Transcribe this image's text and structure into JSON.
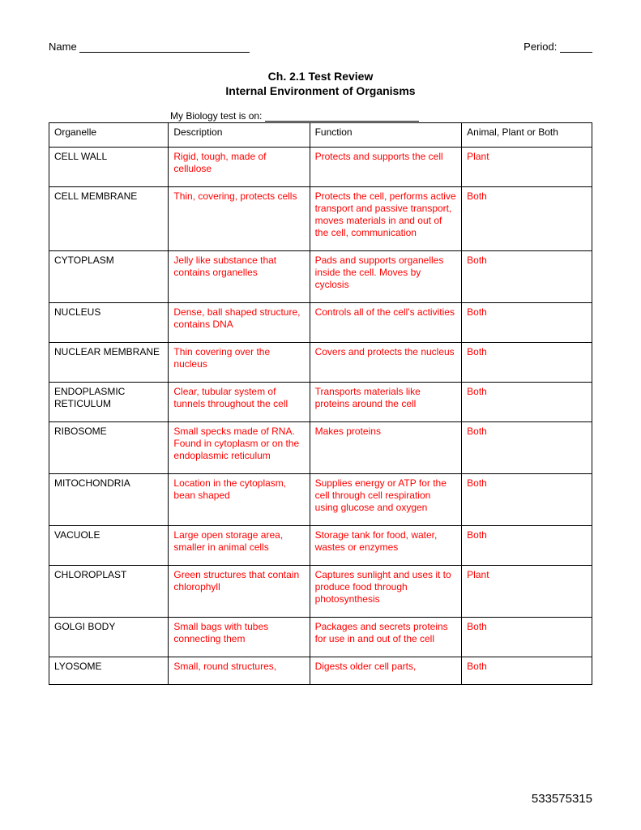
{
  "header": {
    "name_label": "Name",
    "period_label": "Period:"
  },
  "title": {
    "line1": "Ch. 2.1 Test Review",
    "line2": "Internal Environment of Organisms"
  },
  "test_date_label": "My Biology test is on:",
  "table": {
    "headers": {
      "organelle": "Organelle",
      "description": "Description",
      "function": "Function",
      "type": "Animal, Plant or Both"
    },
    "rows": [
      {
        "organelle": "CELL WALL",
        "description": "Rigid, tough, made of cellulose",
        "function": "Protects and supports the cell",
        "type": "Plant"
      },
      {
        "organelle": "CELL MEMBRANE",
        "description": "Thin, covering, protects cells",
        "function": "Protects the cell, performs active transport and passive transport, moves materials in and out of the cell, communication",
        "type": "Both"
      },
      {
        "organelle": "CYTOPLASM",
        "description": "Jelly like substance that contains organelles",
        "function": "Pads and supports organelles inside the cell. Moves by cyclosis",
        "type": "Both"
      },
      {
        "organelle": "NUCLEUS",
        "description": "Dense, ball shaped structure, contains DNA",
        "function": "Controls all of the cell's activities",
        "type": "Both"
      },
      {
        "organelle": "NUCLEAR MEMBRANE",
        "description": "Thin covering over the nucleus",
        "function": "Covers and protects the nucleus",
        "type": "Both"
      },
      {
        "organelle": "ENDOPLASMIC RETICULUM",
        "description": "Clear, tubular system of tunnels throughout the cell",
        "function": "Transports materials like proteins around the cell",
        "type": "Both"
      },
      {
        "organelle": "RIBOSOME",
        "description": "Small specks made of RNA. Found in cytoplasm or on the endoplasmic reticulum",
        "function": "Makes proteins",
        "type": "Both"
      },
      {
        "organelle": "MITOCHONDRIA",
        "description": "Location in the cytoplasm, bean shaped",
        "function": "Supplies energy or ATP for the cell through cell respiration using glucose and oxygen",
        "type": "Both"
      },
      {
        "organelle": "VACUOLE",
        "description": "Large open storage area, smaller in animal cells",
        "function": "Storage tank for food, water, wastes or enzymes",
        "type": "Both"
      },
      {
        "organelle": "CHLOROPLAST",
        "description": "Green structures that contain chlorophyll",
        "function": "Captures sunlight and uses it to produce food through photosynthesis",
        "type": "Plant"
      },
      {
        "organelle": "GOLGI BODY",
        "description": "Small bags with tubes connecting them",
        "function": "Packages and secrets proteins for use in and out of the cell",
        "type": "Both"
      },
      {
        "organelle": "LYOSOME",
        "description": "Small, round structures,",
        "function": "Digests older cell parts,",
        "type": "Both"
      }
    ]
  },
  "footer_number": "533575315",
  "colors": {
    "answer_text": "#ff0000",
    "label_text": "#000000",
    "border": "#000000",
    "background": "#ffffff"
  }
}
